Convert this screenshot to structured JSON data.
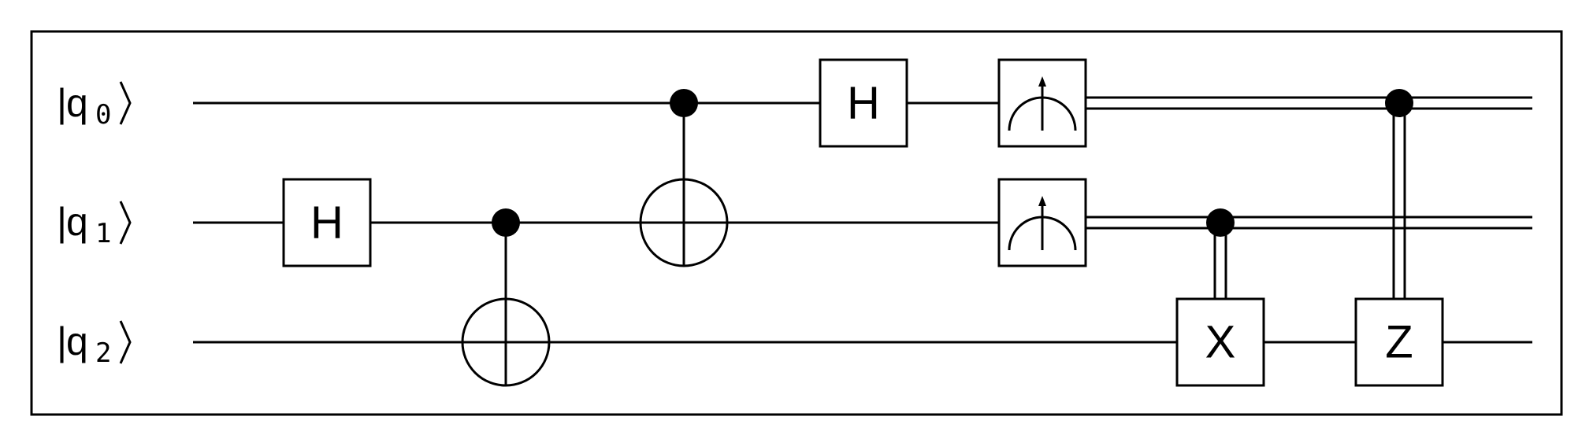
{
  "colors": {
    "wire": "#000000",
    "background": "#ffffff"
  },
  "qubits": [
    {
      "name": "q",
      "index": "0"
    },
    {
      "name": "q",
      "index": "1"
    },
    {
      "name": "q",
      "index": "2"
    }
  ],
  "gates": {
    "h_q1": "H",
    "h_q0": "H",
    "x_q2": "X",
    "z_q2": "Z"
  },
  "measurements": [
    {
      "qubit": 0,
      "icon": "meter-icon"
    },
    {
      "qubit": 1,
      "icon": "meter-icon"
    }
  ],
  "operations": [
    {
      "step": 1,
      "type": "H",
      "target": 1
    },
    {
      "step": 2,
      "type": "CNOT",
      "control": 1,
      "target": 2
    },
    {
      "step": 3,
      "type": "CNOT",
      "control": 0,
      "target": 1
    },
    {
      "step": 4,
      "type": "H",
      "target": 0
    },
    {
      "step": 5,
      "type": "measure",
      "qubits": [
        0,
        1
      ]
    },
    {
      "step": 6,
      "type": "classically-controlled X",
      "control": 1,
      "target": 2
    },
    {
      "step": 7,
      "type": "classically-controlled Z",
      "control": 0,
      "target": 2
    }
  ]
}
